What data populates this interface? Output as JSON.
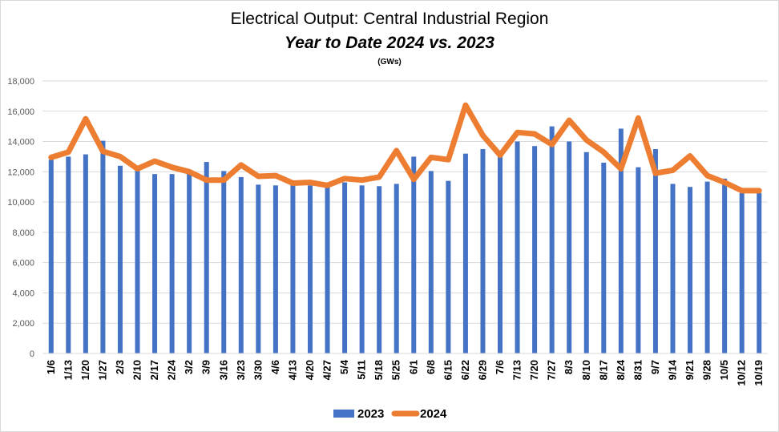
{
  "chart_data": {
    "type": "bar+line",
    "title": "Electrical Output:  Central Industrial Region",
    "subtitle": "Year to Date 2024 vs. 2023",
    "unit": "(GWs)",
    "ylim": [
      0,
      18000
    ],
    "yticks": [
      "0",
      "2,000",
      "4,000",
      "6,000",
      "8,000",
      "10,000",
      "12,000",
      "14,000",
      "16,000",
      "18,000"
    ],
    "grid": true,
    "legend_position": "bottom",
    "categories": [
      "1/6",
      "1/13",
      "1/20",
      "1/27",
      "2/3",
      "2/10",
      "2/17",
      "2/24",
      "3/2",
      "3/9",
      "3/16",
      "3/23",
      "3/30",
      "4/6",
      "4/13",
      "4/20",
      "4/27",
      "5/4",
      "5/11",
      "5/18",
      "5/25",
      "6/1",
      "6/8",
      "6/15",
      "6/22",
      "6/29",
      "7/6",
      "7/13",
      "7/20",
      "7/27",
      "8/3",
      "8/10",
      "8/17",
      "8/24",
      "8/31",
      "9/7",
      "9/14",
      "9/21",
      "9/28",
      "10/5",
      "10/12",
      "10/19"
    ],
    "series": [
      {
        "name": "2023",
        "type": "bar",
        "color": "#4472c4",
        "values": [
          12800,
          13000,
          13150,
          14050,
          12400,
          12100,
          11850,
          11850,
          11900,
          12650,
          12050,
          11650,
          11150,
          11100,
          11150,
          11100,
          11050,
          11300,
          11100,
          11050,
          11200,
          13000,
          12050,
          11400,
          13200,
          13500,
          13000,
          14000,
          13700,
          15000,
          14000,
          13300,
          12600,
          14850,
          12300,
          13500,
          11200,
          11000,
          11350,
          11550,
          10600,
          10600
        ]
      },
      {
        "name": "2024",
        "type": "line",
        "color": "#ed7d31",
        "values": [
          12950,
          13300,
          15500,
          13350,
          13000,
          12200,
          12700,
          12300,
          12000,
          11450,
          11450,
          12450,
          11700,
          11750,
          11250,
          11300,
          11100,
          11550,
          11450,
          11650,
          13400,
          11500,
          12950,
          12800,
          16400,
          14400,
          13100,
          14600,
          14500,
          13800,
          15400,
          14100,
          13300,
          12200,
          15550,
          11900,
          12100,
          13050,
          11750,
          11300,
          10750,
          10750
        ]
      }
    ]
  }
}
